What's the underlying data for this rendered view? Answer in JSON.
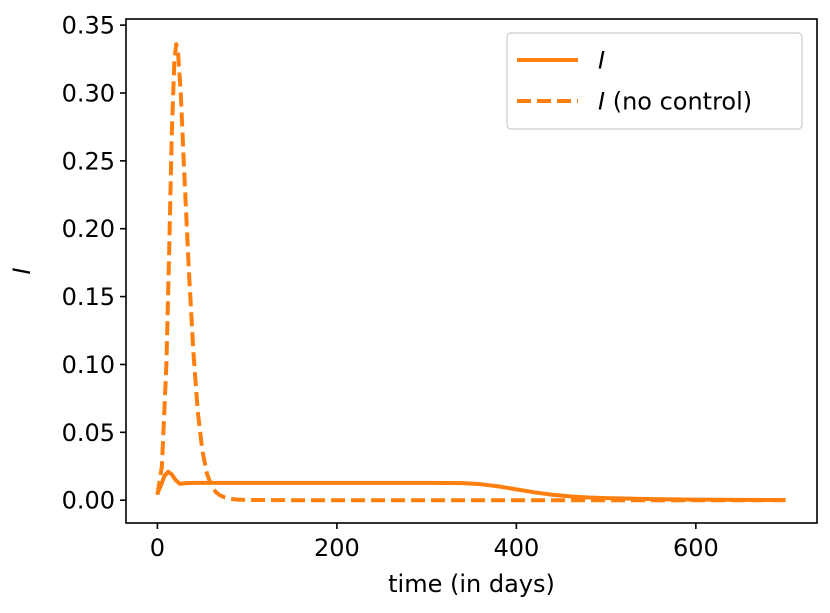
{
  "chart_data": {
    "type": "line",
    "xlabel": "time (in days)",
    "ylabel": "I",
    "xlim": [
      -35,
      735
    ],
    "ylim": [
      -0.0168,
      0.3545
    ],
    "xticks": [
      0,
      200,
      400,
      600
    ],
    "xtick_labels": [
      "0",
      "200",
      "400",
      "600"
    ],
    "yticks": [
      0.0,
      0.05,
      0.1,
      0.15,
      0.2,
      0.25,
      0.3,
      0.35
    ],
    "ytick_labels": [
      "0.00",
      "0.05",
      "0.10",
      "0.15",
      "0.20",
      "0.25",
      "0.30",
      "0.35"
    ],
    "grid": false,
    "legend_position": "top-right",
    "colors": {
      "series": "#ff7f0e",
      "axes": "#000000",
      "background": "#ffffff"
    },
    "series": [
      {
        "name": "I",
        "legend_italic": "I",
        "legend_suffix": "",
        "style": "solid",
        "x": [
          0,
          4,
          8,
          12,
          16,
          20,
          25,
          30,
          40,
          60,
          100,
          200,
          300,
          340,
          360,
          380,
          400,
          420,
          440,
          460,
          480,
          500,
          550,
          600,
          650,
          700
        ],
        "y": [
          0.005,
          0.011,
          0.018,
          0.021,
          0.019,
          0.015,
          0.012,
          0.0125,
          0.0128,
          0.0128,
          0.0128,
          0.0128,
          0.0128,
          0.0126,
          0.0118,
          0.0102,
          0.008,
          0.0058,
          0.004,
          0.0028,
          0.002,
          0.0015,
          0.0008,
          0.0004,
          0.0002,
          0.0001
        ]
      },
      {
        "name": "I (no control)",
        "legend_italic": "I",
        "legend_suffix": " (no control)",
        "style": "dashed",
        "x": [
          0,
          5,
          10,
          13,
          16,
          19,
          21,
          23,
          26,
          30,
          35,
          40,
          45,
          50,
          55,
          60,
          65,
          70,
          75,
          80,
          90,
          100,
          150,
          200,
          300,
          400,
          500,
          600,
          700
        ],
        "y": [
          0.004,
          0.025,
          0.1,
          0.18,
          0.27,
          0.325,
          0.336,
          0.33,
          0.3,
          0.24,
          0.17,
          0.11,
          0.065,
          0.037,
          0.02,
          0.011,
          0.006,
          0.0035,
          0.002,
          0.001,
          0.0004,
          0.0002,
          0.0,
          0.0,
          0.0,
          0.0,
          0.0,
          0.0,
          0.0
        ]
      }
    ]
  }
}
